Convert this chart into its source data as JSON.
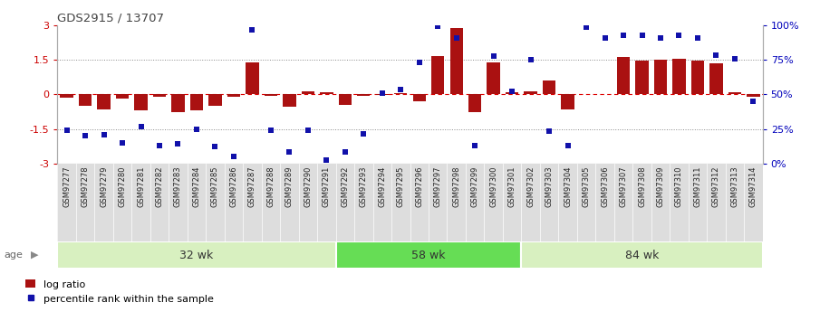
{
  "title": "GDS2915 / 13707",
  "samples": [
    "GSM97277",
    "GSM97278",
    "GSM97279",
    "GSM97280",
    "GSM97281",
    "GSM97282",
    "GSM97283",
    "GSM97284",
    "GSM97285",
    "GSM97286",
    "GSM97287",
    "GSM97288",
    "GSM97289",
    "GSM97290",
    "GSM97291",
    "GSM97292",
    "GSM97293",
    "GSM97294",
    "GSM97295",
    "GSM97296",
    "GSM97297",
    "GSM97298",
    "GSM97299",
    "GSM97300",
    "GSM97301",
    "GSM97302",
    "GSM97303",
    "GSM97304",
    "GSM97305",
    "GSM97306",
    "GSM97307",
    "GSM97308",
    "GSM97309",
    "GSM97310",
    "GSM97311",
    "GSM97312",
    "GSM97313",
    "GSM97314"
  ],
  "log_ratio": [
    -0.15,
    -0.5,
    -0.65,
    -0.18,
    -0.7,
    -0.12,
    -0.75,
    -0.68,
    -0.5,
    -0.12,
    1.4,
    -0.08,
    -0.55,
    0.15,
    0.08,
    -0.45,
    -0.05,
    -0.02,
    0.07,
    -0.3,
    1.65,
    2.85,
    -0.75,
    1.4,
    0.1,
    0.15,
    0.6,
    -0.65,
    0.0,
    0.0,
    1.6,
    1.45,
    1.5,
    1.55,
    1.45,
    1.35,
    0.1,
    -0.12
  ],
  "percentile": [
    -1.55,
    -1.8,
    -1.75,
    -2.1,
    -1.4,
    -2.2,
    -2.15,
    -1.5,
    -2.25,
    -2.7,
    2.8,
    -1.55,
    -2.5,
    -1.55,
    -2.85,
    -2.5,
    -1.7,
    0.05,
    0.2,
    1.4,
    2.95,
    2.45,
    -2.2,
    1.65,
    0.15,
    1.5,
    -1.6,
    -2.2,
    2.9,
    2.45,
    2.55,
    2.55,
    2.45,
    2.55,
    2.45,
    1.7,
    1.55,
    -0.3
  ],
  "groups": [
    {
      "label": "32 wk",
      "start": 0,
      "end": 15
    },
    {
      "label": "58 wk",
      "start": 15,
      "end": 25
    },
    {
      "label": "84 wk",
      "start": 25,
      "end": 38
    }
  ],
  "group_colors": [
    "#d8f0c0",
    "#66dd55",
    "#d8f0c0"
  ],
  "bar_color": "#AA1111",
  "scatter_color": "#1111AA",
  "zero_line_color": "#DD0000",
  "dotted_line_color": "#888888",
  "bg_color": "#FFFFFF",
  "label_bg_color": "#DDDDDD",
  "left_tick_color": "#CC0000",
  "right_tick_color": "#0000BB",
  "title_color": "#444444"
}
